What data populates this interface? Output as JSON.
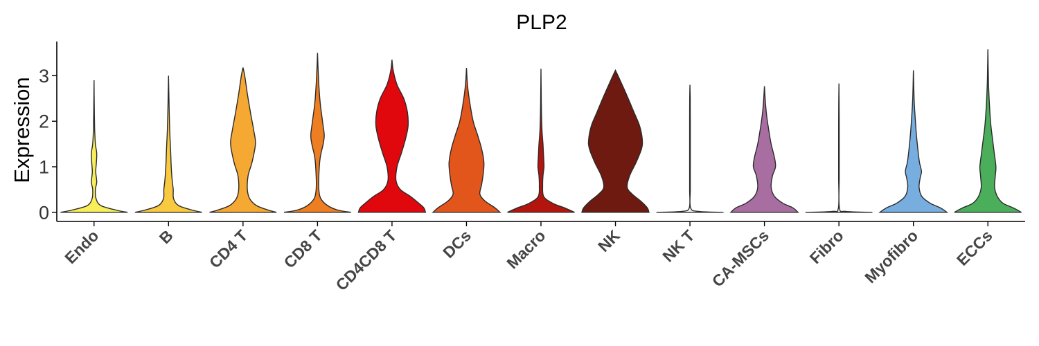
{
  "chart_data": {
    "type": "violin",
    "title": "PLP2",
    "xlabel": "",
    "ylabel": "Expression",
    "ylim": [
      -0.2,
      3.75
    ],
    "yticks": [
      0,
      1,
      2,
      3
    ],
    "grid": false,
    "legend": "none",
    "categories": [
      "Endo",
      "B",
      "CD4 T",
      "CD8 T",
      "CD4CD8 T",
      "DCs",
      "Macro",
      "NK",
      "NK T",
      "CA-MSCs",
      "Fibro",
      "Myofibro",
      "ECCs"
    ],
    "colors": [
      "#F8EE5A",
      "#F9C940",
      "#F5A832",
      "#EE7E22",
      "#E0080C",
      "#E2561C",
      "#B3150E",
      "#6E1A10",
      "#F0F0F0",
      "#A86EA2",
      "#F0F0F0",
      "#78AEDF",
      "#4BAE5B"
    ],
    "max_values": [
      2.9,
      3.0,
      3.18,
      3.5,
      3.35,
      3.17,
      3.15,
      3.12,
      2.8,
      2.77,
      2.83,
      3.12,
      3.58
    ],
    "density_profiles": [
      [
        [
          0,
          1.0
        ],
        [
          0.05,
          0.65
        ],
        [
          0.15,
          0.2
        ],
        [
          0.3,
          0.06
        ],
        [
          0.5,
          0.04
        ],
        [
          0.65,
          0.08
        ],
        [
          0.75,
          0.07
        ],
        [
          0.9,
          0.05
        ],
        [
          1.1,
          0.07
        ],
        [
          1.3,
          0.08
        ],
        [
          1.5,
          0.04
        ],
        [
          1.8,
          0.02
        ],
        [
          2.1,
          0.012
        ],
        [
          2.5,
          0.005
        ],
        [
          2.9,
          0.003
        ]
      ],
      [
        [
          0,
          1.0
        ],
        [
          0.05,
          0.7
        ],
        [
          0.15,
          0.3
        ],
        [
          0.3,
          0.15
        ],
        [
          0.5,
          0.14
        ],
        [
          0.7,
          0.11
        ],
        [
          1.0,
          0.08
        ],
        [
          1.4,
          0.06
        ],
        [
          1.8,
          0.035
        ],
        [
          2.2,
          0.02
        ],
        [
          2.6,
          0.01
        ],
        [
          3.0,
          0.003
        ]
      ],
      [
        [
          0,
          1.0
        ],
        [
          0.05,
          0.75
        ],
        [
          0.15,
          0.4
        ],
        [
          0.3,
          0.2
        ],
        [
          0.5,
          0.13
        ],
        [
          0.8,
          0.15
        ],
        [
          1.1,
          0.27
        ],
        [
          1.5,
          0.37
        ],
        [
          1.8,
          0.32
        ],
        [
          2.2,
          0.22
        ],
        [
          2.6,
          0.13
        ],
        [
          3.0,
          0.05
        ],
        [
          3.18,
          0.005
        ]
      ],
      [
        [
          0,
          1.0
        ],
        [
          0.05,
          0.6
        ],
        [
          0.15,
          0.3
        ],
        [
          0.3,
          0.1
        ],
        [
          0.5,
          0.04
        ],
        [
          0.8,
          0.04
        ],
        [
          1.2,
          0.08
        ],
        [
          1.5,
          0.17
        ],
        [
          1.7,
          0.2
        ],
        [
          2.0,
          0.15
        ],
        [
          2.4,
          0.08
        ],
        [
          2.8,
          0.04
        ],
        [
          3.2,
          0.015
        ],
        [
          3.5,
          0.003
        ]
      ],
      [
        [
          0,
          1.0
        ],
        [
          0.1,
          0.95
        ],
        [
          0.2,
          0.8
        ],
        [
          0.35,
          0.55
        ],
        [
          0.5,
          0.25
        ],
        [
          0.7,
          0.12
        ],
        [
          1.0,
          0.15
        ],
        [
          1.3,
          0.28
        ],
        [
          1.6,
          0.4
        ],
        [
          1.9,
          0.48
        ],
        [
          2.2,
          0.46
        ],
        [
          2.5,
          0.35
        ],
        [
          2.8,
          0.15
        ],
        [
          3.1,
          0.04
        ],
        [
          3.35,
          0.003
        ]
      ],
      [
        [
          0,
          1.0
        ],
        [
          0.1,
          0.85
        ],
        [
          0.25,
          0.55
        ],
        [
          0.4,
          0.4
        ],
        [
          0.6,
          0.45
        ],
        [
          0.85,
          0.5
        ],
        [
          1.1,
          0.52
        ],
        [
          1.4,
          0.45
        ],
        [
          1.7,
          0.33
        ],
        [
          2.0,
          0.2
        ],
        [
          2.4,
          0.1
        ],
        [
          2.8,
          0.03
        ],
        [
          3.17,
          0.003
        ]
      ],
      [
        [
          0,
          1.0
        ],
        [
          0.1,
          0.7
        ],
        [
          0.2,
          0.35
        ],
        [
          0.35,
          0.08
        ],
        [
          0.6,
          0.05
        ],
        [
          0.8,
          0.06
        ],
        [
          1.0,
          0.09
        ],
        [
          1.2,
          0.08
        ],
        [
          1.5,
          0.06
        ],
        [
          1.8,
          0.03
        ],
        [
          2.2,
          0.015
        ],
        [
          2.7,
          0.006
        ],
        [
          3.15,
          0.002
        ]
      ],
      [
        [
          0,
          1.0
        ],
        [
          0.1,
          0.95
        ],
        [
          0.25,
          0.75
        ],
        [
          0.4,
          0.5
        ],
        [
          0.55,
          0.35
        ],
        [
          0.8,
          0.42
        ],
        [
          1.1,
          0.62
        ],
        [
          1.4,
          0.78
        ],
        [
          1.6,
          0.8
        ],
        [
          1.9,
          0.72
        ],
        [
          2.2,
          0.55
        ],
        [
          2.5,
          0.38
        ],
        [
          2.8,
          0.2
        ],
        [
          3.12,
          0.02
        ]
      ],
      [
        [
          0,
          1.0
        ],
        [
          0.02,
          0.25
        ],
        [
          0.1,
          0.02
        ],
        [
          0.5,
          0.01
        ],
        [
          1.0,
          0.01
        ],
        [
          1.5,
          0.01
        ],
        [
          2.0,
          0.01
        ],
        [
          2.5,
          0.008
        ],
        [
          2.8,
          0.005
        ]
      ],
      [
        [
          0,
          1.0
        ],
        [
          0.1,
          0.85
        ],
        [
          0.2,
          0.55
        ],
        [
          0.35,
          0.3
        ],
        [
          0.55,
          0.2
        ],
        [
          0.8,
          0.24
        ],
        [
          1.0,
          0.33
        ],
        [
          1.2,
          0.3
        ],
        [
          1.5,
          0.2
        ],
        [
          1.8,
          0.13
        ],
        [
          2.1,
          0.07
        ],
        [
          2.4,
          0.03
        ],
        [
          2.77,
          0.005
        ]
      ],
      [
        [
          0,
          1.0
        ],
        [
          0.02,
          0.2
        ],
        [
          0.1,
          0.015
        ],
        [
          0.8,
          0.01
        ],
        [
          1.6,
          0.01
        ],
        [
          2.2,
          0.008
        ],
        [
          2.83,
          0.005
        ]
      ],
      [
        [
          0,
          1.0
        ],
        [
          0.1,
          0.8
        ],
        [
          0.2,
          0.5
        ],
        [
          0.35,
          0.25
        ],
        [
          0.55,
          0.17
        ],
        [
          0.75,
          0.2
        ],
        [
          0.9,
          0.24
        ],
        [
          1.1,
          0.18
        ],
        [
          1.4,
          0.13
        ],
        [
          1.7,
          0.09
        ],
        [
          2.0,
          0.06
        ],
        [
          2.5,
          0.02
        ],
        [
          3.12,
          0.002
        ]
      ],
      [
        [
          0,
          1.0
        ],
        [
          0.1,
          0.75
        ],
        [
          0.2,
          0.45
        ],
        [
          0.35,
          0.28
        ],
        [
          0.55,
          0.2
        ],
        [
          0.8,
          0.22
        ],
        [
          1.0,
          0.24
        ],
        [
          1.3,
          0.19
        ],
        [
          1.6,
          0.14
        ],
        [
          1.9,
          0.09
        ],
        [
          2.3,
          0.05
        ],
        [
          2.8,
          0.02
        ],
        [
          3.2,
          0.008
        ],
        [
          3.58,
          0.002
        ]
      ]
    ]
  }
}
